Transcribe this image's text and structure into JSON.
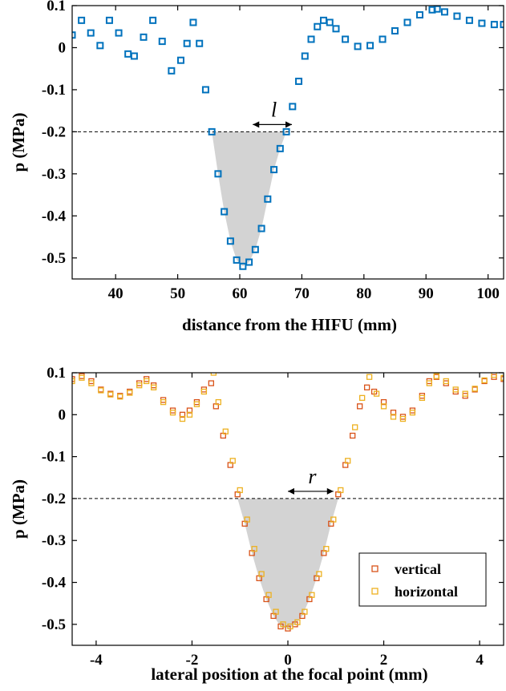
{
  "chart_data": [
    {
      "type": "scatter",
      "xlabel": "distance from the HIFU (mm)",
      "ylabel": "p (MPa)",
      "xlim": [
        33,
        102.5
      ],
      "ylim": [
        -0.55,
        0.1
      ],
      "xticks": [
        40,
        50,
        60,
        70,
        80,
        90,
        100
      ],
      "yticks": [
        0.1,
        0,
        -0.1,
        -0.2,
        -0.3,
        -0.4,
        -0.5
      ],
      "threshold": -0.2,
      "annotation": "l",
      "annotation_span": [
        55.8,
        68.4
      ],
      "grid": false,
      "series": [
        {
          "color": "#0072BD",
          "marker": "square",
          "x": [
            33,
            34.5,
            36,
            37.5,
            39,
            40.5,
            42,
            43,
            44.5,
            46,
            47.5,
            49,
            50.5,
            51.5,
            52.5,
            53.5,
            54.5,
            55.5,
            56.5,
            57.5,
            58.5,
            59.5,
            60.5,
            61.5,
            62.5,
            63.5,
            64.5,
            65.5,
            66.5,
            67.5,
            68.5,
            69.5,
            70.5,
            71.5,
            72.5,
            73.5,
            74.5,
            75.5,
            77,
            79,
            81,
            83,
            85,
            87,
            89,
            91,
            91.8,
            93,
            95,
            97,
            99,
            101,
            102.5
          ],
          "y": [
            0.03,
            0.065,
            0.035,
            0.005,
            0.065,
            0.035,
            -0.015,
            -0.02,
            0.025,
            0.065,
            0.015,
            -0.055,
            -0.03,
            0.01,
            0.06,
            0.01,
            -0.1,
            -0.2,
            -0.3,
            -0.39,
            -0.46,
            -0.505,
            -0.52,
            -0.51,
            -0.48,
            -0.43,
            -0.36,
            -0.29,
            -0.24,
            -0.2,
            -0.14,
            -0.08,
            -0.02,
            0.02,
            0.05,
            0.065,
            0.06,
            0.045,
            0.02,
            0.003,
            0.005,
            0.02,
            0.04,
            0.06,
            0.078,
            0.09,
            0.092,
            0.085,
            0.075,
            0.065,
            0.058,
            0.055,
            0.055
          ]
        }
      ]
    },
    {
      "type": "scatter",
      "xlabel": "lateral position at the focal point (mm)",
      "ylabel": "p (MPa)",
      "xlim": [
        -4.5,
        4.5
      ],
      "ylim": [
        -0.55,
        0.1
      ],
      "xticks": [
        -4,
        -2,
        0,
        2,
        4
      ],
      "yticks": [
        0.1,
        0,
        -0.1,
        -0.2,
        -0.3,
        -0.4,
        -0.5
      ],
      "threshold": -0.2,
      "annotation": "r",
      "annotation_span": [
        -0.95,
        0.95
      ],
      "grid": false,
      "legend": "bottom-right",
      "series": [
        {
          "name": "vertical",
          "color": "#D95319",
          "marker": "square",
          "x": [
            -4.5,
            -4.3,
            -4.1,
            -3.9,
            -3.7,
            -3.5,
            -3.3,
            -3.1,
            -2.95,
            -2.8,
            -2.6,
            -2.4,
            -2.2,
            -2.05,
            -1.9,
            -1.75,
            -1.6,
            -1.5,
            -1.35,
            -1.2,
            -1.05,
            -0.9,
            -0.75,
            -0.6,
            -0.45,
            -0.3,
            -0.15,
            0,
            0.15,
            0.3,
            0.45,
            0.6,
            0.75,
            0.9,
            1.05,
            1.2,
            1.35,
            1.5,
            1.65,
            1.8,
            2,
            2.2,
            2.4,
            2.6,
            2.8,
            2.95,
            3.1,
            3.3,
            3.5,
            3.7,
            3.9,
            4.1,
            4.3,
            4.5
          ],
          "y": [
            0.085,
            0.092,
            0.08,
            0.06,
            0.05,
            0.045,
            0.055,
            0.075,
            0.085,
            0.07,
            0.035,
            0.01,
            0,
            0.01,
            0.03,
            0.06,
            0.075,
            0.02,
            -0.05,
            -0.12,
            -0.19,
            -0.26,
            -0.33,
            -0.39,
            -0.44,
            -0.48,
            -0.505,
            -0.51,
            -0.5,
            -0.48,
            -0.44,
            -0.39,
            -0.33,
            -0.26,
            -0.19,
            -0.12,
            -0.05,
            0.02,
            0.065,
            0.055,
            0.03,
            0.005,
            -0.005,
            0.01,
            0.045,
            0.08,
            0.09,
            0.075,
            0.055,
            0.045,
            0.06,
            0.08,
            0.09,
            0.085
          ]
        },
        {
          "name": "horizontal",
          "color": "#EDB120",
          "marker": "square",
          "x": [
            -4.5,
            -4.3,
            -4.1,
            -3.9,
            -3.7,
            -3.5,
            -3.3,
            -3.1,
            -2.95,
            -2.8,
            -2.6,
            -2.4,
            -2.2,
            -2.05,
            -1.9,
            -1.75,
            -1.55,
            -1.45,
            -1.3,
            -1.15,
            -1,
            -0.85,
            -0.7,
            -0.55,
            -0.4,
            -0.25,
            -0.1,
            0.05,
            0.2,
            0.35,
            0.5,
            0.65,
            0.8,
            0.95,
            1.1,
            1.25,
            1.4,
            1.55,
            1.7,
            1.85,
            2,
            2.2,
            2.4,
            2.6,
            2.8,
            2.95,
            3.1,
            3.3,
            3.5,
            3.7,
            3.9,
            4.1,
            4.3,
            4.5
          ],
          "y": [
            0.08,
            0.088,
            0.075,
            0.058,
            0.048,
            0.043,
            0.052,
            0.07,
            0.08,
            0.065,
            0.03,
            0.005,
            -0.01,
            0.0,
            0.025,
            0.055,
            0.1,
            0.03,
            -0.04,
            -0.11,
            -0.18,
            -0.25,
            -0.32,
            -0.38,
            -0.43,
            -0.47,
            -0.5,
            -0.505,
            -0.495,
            -0.47,
            -0.43,
            -0.38,
            -0.32,
            -0.25,
            -0.18,
            -0.11,
            -0.03,
            0.04,
            0.09,
            0.05,
            0.02,
            -0.005,
            -0.01,
            0.005,
            0.04,
            0.075,
            0.092,
            0.08,
            0.06,
            0.05,
            0.062,
            0.082,
            0.095,
            0.088
          ]
        }
      ]
    }
  ]
}
